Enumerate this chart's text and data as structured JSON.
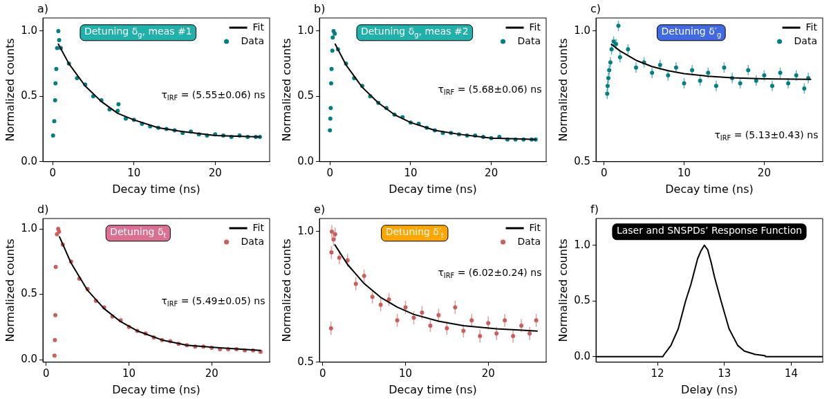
{
  "chart_data": [
    {
      "type": "scatter",
      "title": "a)",
      "xlabel": "Decay time (ns)",
      "ylabel": "Normalized counts",
      "xlim": [
        -1.2,
        26.7
      ],
      "ylim": [
        0,
        1.1
      ],
      "xticks": [
        0,
        10,
        20
      ],
      "yticks": [
        {
          "value": 0,
          "label": "0.0"
        },
        {
          "value": 0.5,
          "label": "0.5"
        },
        {
          "value": 1,
          "label": "1.0"
        }
      ],
      "grid": false,
      "legend": "top right",
      "marker": "circle",
      "annotations": [
        "Detuning δ$_{g}$, meas #1",
        "τ$_{IRF}$ = (5.55±0.06) ns"
      ],
      "series": [
        {
          "name": "Fit",
          "type": "line",
          "color": "#000000",
          "marker": "none",
          "x": [
            0.7,
            2,
            4,
            6,
            8,
            10,
            13,
            16,
            20,
            25.5
          ],
          "values": [
            0.9,
            0.75,
            0.58,
            0.46,
            0.37,
            0.32,
            0.26,
            0.23,
            0.2,
            0.19
          ]
        },
        {
          "name": "Data",
          "type": "scatter",
          "color": "#008080",
          "x": [
            0.05,
            0.2,
            0.3,
            0.35,
            0.45,
            0.55,
            0.7,
            0.8,
            1,
            2,
            3,
            4,
            5,
            6,
            7,
            8,
            8.1,
            9,
            10,
            11,
            12,
            13,
            14,
            15,
            16,
            17,
            18,
            19,
            20,
            21,
            22,
            23,
            24,
            25,
            25.5
          ],
          "values": [
            0.2,
            0.31,
            0.47,
            0.6,
            0.71,
            0.87,
            1.0,
            0.93,
            0.87,
            0.75,
            0.64,
            0.59,
            0.5,
            0.47,
            0.4,
            0.39,
            0.44,
            0.33,
            0.32,
            0.29,
            0.27,
            0.26,
            0.25,
            0.24,
            0.22,
            0.23,
            0.21,
            0.2,
            0.21,
            0.2,
            0.19,
            0.2,
            0.19,
            0.19,
            0.19
          ]
        }
      ]
    },
    {
      "type": "scatter",
      "title": "b)",
      "xlabel": "Decay time (ns)",
      "ylabel": "Normalized counts",
      "xlim": [
        -1.3,
        26.8
      ],
      "ylim": [
        0,
        1.1
      ],
      "xticks": [
        0,
        10,
        20
      ],
      "yticks": [
        {
          "value": 0,
          "label": "0.0"
        },
        {
          "value": 0.5,
          "label": "0.5"
        },
        {
          "value": 1,
          "label": "1.0"
        }
      ],
      "grid": false,
      "legend": "top right",
      "marker": "circle",
      "annotations": [
        "Detuning δ$_{g}$, meas #2",
        "τ$_{IRF}$ = (5.68±0.06) ns"
      ],
      "series": [
        {
          "name": "Fit",
          "type": "line",
          "color": "#000000",
          "marker": "none",
          "x": [
            0.65,
            2,
            4,
            6,
            8,
            10,
            13,
            16,
            20,
            25.5
          ],
          "values": [
            0.9,
            0.74,
            0.57,
            0.45,
            0.36,
            0.3,
            0.24,
            0.21,
            0.18,
            0.17
          ]
        },
        {
          "name": "Data",
          "type": "scatter",
          "color": "#008080",
          "x": [
            0,
            0.05,
            0.1,
            0.15,
            0.2,
            0.3,
            0.35,
            0.45,
            0.6,
            1,
            2,
            3,
            4,
            5,
            6,
            7,
            8,
            9,
            10,
            11,
            12,
            13,
            14,
            15,
            16,
            17,
            18,
            19,
            20,
            21,
            22,
            23,
            24,
            25,
            25.5
          ],
          "values": [
            0.24,
            0.33,
            0.41,
            0.6,
            0.71,
            0.85,
            0.95,
            1.0,
            0.98,
            0.86,
            0.75,
            0.64,
            0.58,
            0.5,
            0.45,
            0.41,
            0.36,
            0.34,
            0.3,
            0.29,
            0.26,
            0.24,
            0.22,
            0.22,
            0.21,
            0.2,
            0.2,
            0.19,
            0.18,
            0.19,
            0.17,
            0.17,
            0.17,
            0.17,
            0.17
          ]
        }
      ]
    },
    {
      "type": "scatter",
      "title": "c)",
      "xlabel": "Decay time (ns)",
      "ylabel": "Normalized counts",
      "xlim": [
        -1,
        27.3
      ],
      "ylim": [
        0.5,
        1.05
      ],
      "xticks": [
        0,
        10,
        20
      ],
      "yticks": [
        {
          "value": 0.5,
          "label": "0.5"
        },
        {
          "value": 1,
          "label": "1.0"
        }
      ],
      "grid": false,
      "legend": "top right",
      "marker": "circle",
      "annotations": [
        "Detuning δ′$_{g}$",
        "τ$_{IRF}$ = (5.13±0.43) ns"
      ],
      "series": [
        {
          "name": "Fit",
          "type": "line",
          "color": "#000000",
          "marker": "none",
          "x": [
            0.94,
            2,
            4,
            6,
            8,
            10,
            13,
            16,
            20,
            25.8
          ],
          "values": [
            0.949,
            0.924,
            0.888,
            0.864,
            0.848,
            0.837,
            0.827,
            0.821,
            0.817,
            0.815
          ]
        },
        {
          "name": "Data",
          "type": "scatter",
          "color": "#008080",
          "x": [
            0.4,
            0.45,
            0.55,
            0.65,
            0.8,
            0.95,
            1.2,
            1.5,
            1.8,
            2,
            3,
            4,
            5,
            6,
            7,
            8,
            9,
            10,
            11,
            12,
            13,
            14,
            15,
            16,
            17,
            18,
            19,
            20,
            21,
            22,
            23,
            24,
            25,
            25.5
          ],
          "values": [
            0.76,
            0.79,
            0.82,
            0.85,
            0.88,
            0.93,
            0.96,
            0.95,
            1.02,
            0.9,
            0.93,
            0.86,
            0.88,
            0.84,
            0.87,
            0.83,
            0.86,
            0.8,
            0.85,
            0.81,
            0.84,
            0.79,
            0.86,
            0.82,
            0.8,
            0.85,
            0.81,
            0.83,
            0.79,
            0.84,
            0.8,
            0.83,
            0.78,
            0.82
          ],
          "errors": [
            0.02,
            0.02,
            0.02,
            0.02,
            0.02,
            0.02,
            0.02,
            0.02,
            0.02,
            0.02,
            0.02,
            0.02,
            0.02,
            0.02,
            0.02,
            0.02,
            0.02,
            0.02,
            0.02,
            0.02,
            0.02,
            0.02,
            0.02,
            0.02,
            0.02,
            0.02,
            0.02,
            0.02,
            0.02,
            0.02,
            0.02,
            0.02,
            0.02,
            0.02
          ]
        }
      ]
    },
    {
      "type": "scatter",
      "title": "d)",
      "xlabel": "Decay time (ns)",
      "ylabel": "Normalized counts",
      "xlim": [
        -0.4,
        27
      ],
      "ylim": [
        -0.02,
        1.08
      ],
      "xticks": [
        0,
        10,
        20
      ],
      "yticks": [
        {
          "value": 0,
          "label": "0.0"
        },
        {
          "value": 0.5,
          "label": "0.5"
        },
        {
          "value": 1,
          "label": "1.0"
        }
      ],
      "grid": false,
      "legend": "top right",
      "marker": "circle",
      "annotations": [
        "Detuning δ$_{t}$",
        "τ$_{IRF}$ = (5.49±0.05) ns"
      ],
      "series": [
        {
          "name": "Fit",
          "type": "line",
          "color": "#000000",
          "marker": "none",
          "x": [
            1.6,
            3,
            5,
            7,
            9,
            11,
            14,
            17,
            21,
            25.9
          ],
          "values": [
            0.94,
            0.74,
            0.53,
            0.39,
            0.29,
            0.22,
            0.15,
            0.11,
            0.09,
            0.07
          ]
        },
        {
          "name": "Data",
          "type": "scatter",
          "color": "#cd5c5c",
          "x": [
            1,
            1.05,
            1.1,
            1.15,
            1.3,
            1.45,
            1.55,
            2,
            3,
            4,
            5,
            6,
            7,
            8,
            9,
            10,
            11,
            12,
            13,
            14,
            15,
            16,
            17,
            18,
            19,
            20,
            21,
            22,
            23,
            24,
            25,
            25.9
          ],
          "values": [
            0.03,
            0.15,
            0.34,
            0.71,
            0.96,
            1.0,
            0.98,
            0.88,
            0.75,
            0.62,
            0.54,
            0.45,
            0.4,
            0.33,
            0.3,
            0.25,
            0.22,
            0.2,
            0.17,
            0.15,
            0.14,
            0.12,
            0.11,
            0.1,
            0.1,
            0.09,
            0.08,
            0.08,
            0.08,
            0.07,
            0.07,
            0.06
          ]
        }
      ]
    },
    {
      "type": "scatter",
      "title": "e)",
      "xlabel": "Decay time (ns)",
      "ylabel": "Normalized counts",
      "xlim": [
        -0.4,
        27
      ],
      "ylim": [
        0.5,
        1.05
      ],
      "xticks": [
        0,
        10,
        20
      ],
      "yticks": [
        {
          "value": 0.5,
          "label": "0.5"
        },
        {
          "value": 1,
          "label": "1.0"
        }
      ],
      "grid": false,
      "legend": "top right",
      "marker": "circle",
      "annotations": [
        "Detuning δ′$_{t}$",
        "τ$_{IRF}$ = (6.02±0.24) ns"
      ],
      "series": [
        {
          "name": "Fit",
          "type": "line",
          "color": "#000000",
          "marker": "none",
          "x": [
            1.47,
            3,
            5,
            7,
            9,
            11,
            14,
            17,
            21,
            25.9
          ],
          "values": [
            0.949,
            0.874,
            0.801,
            0.748,
            0.711,
            0.683,
            0.657,
            0.64,
            0.628,
            0.619
          ]
        },
        {
          "name": "Data",
          "type": "scatter",
          "color": "#cd5c5c",
          "x": [
            1,
            1.05,
            1.1,
            1.3,
            1.5,
            2,
            3,
            4,
            5,
            6,
            7,
            8,
            9,
            10,
            11,
            12,
            13,
            14,
            15,
            16,
            17,
            18,
            19,
            20,
            21,
            22,
            23,
            24,
            25,
            25.8
          ],
          "values": [
            0.63,
            0.92,
            1.0,
            0.97,
            0.99,
            0.9,
            0.89,
            0.8,
            0.83,
            0.75,
            0.72,
            0.74,
            0.66,
            0.71,
            0.67,
            0.69,
            0.64,
            0.68,
            0.63,
            0.71,
            0.62,
            0.66,
            0.6,
            0.65,
            0.61,
            0.66,
            0.6,
            0.64,
            0.61,
            0.66
          ],
          "errors": [
            0.025,
            0.025,
            0.025,
            0.025,
            0.025,
            0.025,
            0.025,
            0.025,
            0.025,
            0.025,
            0.025,
            0.025,
            0.025,
            0.025,
            0.025,
            0.025,
            0.025,
            0.025,
            0.025,
            0.025,
            0.025,
            0.025,
            0.025,
            0.025,
            0.025,
            0.025,
            0.025,
            0.025,
            0.025,
            0.025
          ]
        }
      ]
    },
    {
      "type": "line",
      "title": "f)",
      "xlabel": "Delay (ns)",
      "ylabel": "Normalized counts",
      "xlim": [
        11.08,
        14.47
      ],
      "ylim": [
        -0.05,
        1.24
      ],
      "xticks": [
        12,
        13,
        14
      ],
      "yticks": [
        {
          "value": 0,
          "label": "0.0"
        },
        {
          "value": 0.5,
          "label": "0.5"
        },
        {
          "value": 1,
          "label": "1.0"
        }
      ],
      "grid": false,
      "legend": false,
      "marker": "none",
      "annotations": [
        "Laser and SNSPDs’ Response Function"
      ],
      "series": [
        {
          "color": "#000000",
          "x": [
            11.08,
            12.08,
            12.1,
            12.2,
            12.31,
            12.42,
            12.5,
            12.6,
            12.65,
            12.7,
            12.75,
            12.8,
            12.85,
            12.95,
            13.07,
            13.2,
            13.3,
            13.46,
            13.6,
            13.62,
            14.47
          ],
          "values": [
            0,
            0,
            0.02,
            0.1,
            0.25,
            0.5,
            0.65,
            0.88,
            0.95,
            1.0,
            0.96,
            0.85,
            0.72,
            0.5,
            0.25,
            0.1,
            0.05,
            0.02,
            0.01,
            0,
            0
          ]
        }
      ]
    }
  ]
}
